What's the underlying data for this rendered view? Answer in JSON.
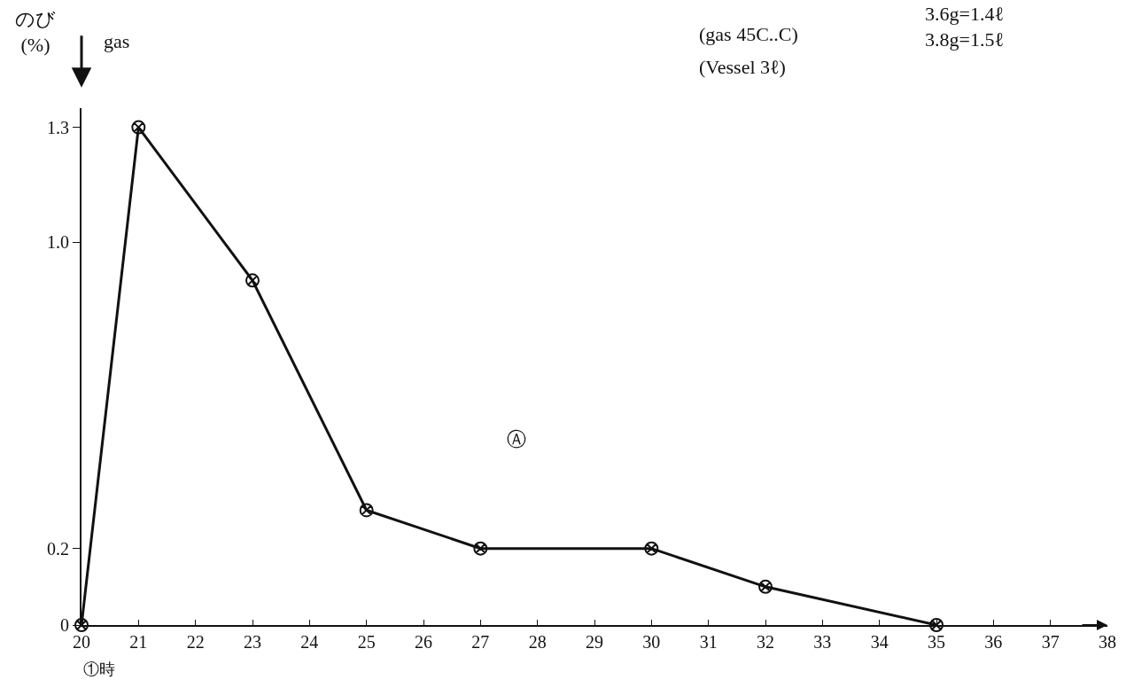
{
  "chart_data": {
    "type": "line",
    "ylabel": "のび\n(%)",
    "xlabel": "①時",
    "x": [
      20,
      21,
      23,
      25,
      27,
      30,
      32,
      35
    ],
    "series": [
      {
        "color": "#111111",
        "values": [
          0,
          1.3,
          0.9,
          0.3,
          0.2,
          0.2,
          0.1,
          0
        ]
      }
    ],
    "xlim": [
      20,
      38
    ],
    "xticks": [
      20,
      21,
      22,
      23,
      24,
      25,
      26,
      27,
      28,
      29,
      30,
      31,
      32,
      33,
      34,
      35,
      36,
      37,
      38
    ],
    "ylim": [
      0,
      1.35
    ],
    "yticks": [
      0,
      0.2,
      {
        "value": 1.0,
        "label": "1.0"
      },
      1.3
    ],
    "marker": "cross",
    "line_style": "solid",
    "legend": false,
    "annotations": [
      "gas",
      "(gas 45C..C)",
      "3.6g=1.4ℓ\n3.8g=1.5ℓ",
      "(Vessel 3ℓ)",
      "Ⓐ"
    ]
  }
}
